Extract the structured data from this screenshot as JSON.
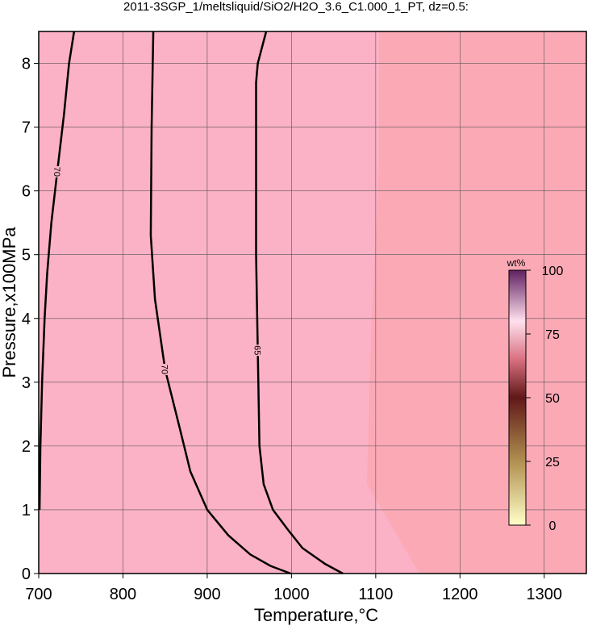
{
  "chart_data": {
    "type": "line",
    "title": "2011-3SGP_1/meltsliquid/SiO2/H2O_3.6_C1.000_1_PT, dz=0.5:",
    "xlabel": "Temperature,°C",
    "ylabel": "Pressure,x100MPa",
    "xlim": [
      700,
      1350
    ],
    "ylim": [
      0,
      8.5
    ],
    "xticks": [
      700,
      800,
      900,
      1000,
      1100,
      1200,
      1300
    ],
    "yticks": [
      0,
      1,
      2,
      3,
      4,
      5,
      6,
      7,
      8
    ],
    "grid": true,
    "series": [
      {
        "name": "70",
        "color": "#000000",
        "x": [
          742,
          736,
          730,
          722,
          715,
          710,
          707,
          704,
          702,
          701
        ],
        "y": [
          8.5,
          8.0,
          7.2,
          6.3,
          5.5,
          4.7,
          4.0,
          3.0,
          2.0,
          1.0
        ]
      },
      {
        "name": "70",
        "color": "#000000",
        "x": [
          836,
          834,
          833,
          838,
          850,
          867,
          880,
          900,
          925,
          951,
          975,
          999
        ],
        "y": [
          8.5,
          7.0,
          5.3,
          4.3,
          3.2,
          2.3,
          1.6,
          1.0,
          0.6,
          0.3,
          0.12,
          0
        ]
      },
      {
        "name": "65",
        "color": "#000000",
        "x": [
          970,
          960,
          958,
          958,
          960,
          962,
          967,
          978,
          995,
          1013,
          1040,
          1061
        ],
        "y": [
          8.5,
          8.0,
          7.7,
          5.0,
          3.5,
          2.0,
          1.4,
          1.0,
          0.7,
          0.4,
          0.15,
          0
        ]
      }
    ],
    "colorbar": {
      "label": "wt%",
      "lim": [
        0,
        100
      ],
      "ticks": [
        0,
        25,
        50,
        75,
        100
      ]
    }
  }
}
